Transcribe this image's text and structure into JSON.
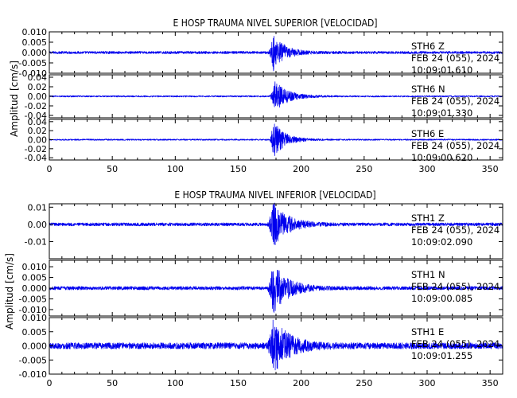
{
  "colors": {
    "trace": "#0000ee",
    "axis": "#000000",
    "background": "#ffffff"
  },
  "chart_data": [
    {
      "type": "line",
      "title": "E HOSP TRAUMA NIVEL SUPERIOR [VELOCIDAD]",
      "ylabel": "Amplitud [cm/s]",
      "xlim": [
        0,
        360
      ],
      "xticks": [
        0,
        50,
        100,
        150,
        200,
        250,
        300,
        350
      ],
      "xtick_labels": [
        "0",
        "50",
        "100",
        "150",
        "200",
        "250",
        "300",
        "350"
      ],
      "grid": false,
      "series": [
        {
          "name": "STH6 Z",
          "station": "STH6",
          "component": "Z",
          "date": "FEB 24 (055), 2024",
          "time": "10:09:01.610",
          "ylim": [
            -0.01,
            0.01
          ],
          "yticks": [
            0.01,
            0.005,
            0.0,
            -0.005,
            -0.01
          ],
          "ytick_labels": [
            "0.010",
            "0.005",
            "0.000",
            "-0.005",
            "-0.010"
          ],
          "noise_amplitude": 0.0006,
          "peak_amplitude": 0.0085,
          "onset_s": 173,
          "peak_s": 178,
          "decay_s": 9
        },
        {
          "name": "STH6 N",
          "station": "STH6",
          "component": "N",
          "date": "FEB 24 (055), 2024",
          "time": "10:09:01.330",
          "ylim": [
            -0.045,
            0.045
          ],
          "yticks": [
            0.04,
            0.02,
            0.0,
            -0.02,
            -0.04
          ],
          "ytick_labels": [
            "0.04",
            "0.02",
            "0.00",
            "-0.02",
            "-0.04"
          ],
          "noise_amplitude": 0.0015,
          "peak_amplitude": 0.032,
          "onset_s": 174,
          "peak_s": 179,
          "decay_s": 10
        },
        {
          "name": "STH6 E",
          "station": "STH6",
          "component": "E",
          "date": "FEB 24 (055), 2024",
          "time": "10:09:00.620",
          "ylim": [
            -0.045,
            0.045
          ],
          "yticks": [
            0.04,
            0.02,
            0.0,
            -0.02,
            -0.04
          ],
          "ytick_labels": [
            "0.04",
            "0.02",
            "0.00",
            "-0.02",
            "-0.04"
          ],
          "noise_amplitude": 0.0015,
          "peak_amplitude": 0.04,
          "onset_s": 174,
          "peak_s": 178,
          "decay_s": 9
        }
      ]
    },
    {
      "type": "line",
      "title": "E HOSP TRAUMA NIVEL INFERIOR [VELOCIDAD]",
      "ylabel": "Amplitud [cm/s]",
      "xlim": [
        0,
        360
      ],
      "xticks": [
        0,
        50,
        100,
        150,
        200,
        250,
        300,
        350
      ],
      "xtick_labels": [
        "0",
        "50",
        "100",
        "150",
        "200",
        "250",
        "300",
        "350"
      ],
      "grid": false,
      "series": [
        {
          "name": "STH1 Z",
          "station": "STH1",
          "component": "Z",
          "date": "FEB 24 (055), 2024",
          "time": "10:09:02.090",
          "ylim": [
            -0.02,
            0.012
          ],
          "yticks": [
            0.01,
            0.0,
            -0.01
          ],
          "ytick_labels": [
            "0.01",
            "0.00",
            "-0.01"
          ],
          "noise_amplitude": 0.0009,
          "peak_amplitude": 0.013,
          "onset_s": 172,
          "peak_s": 178,
          "decay_s": 11
        },
        {
          "name": "STH1 N",
          "station": "STH1",
          "component": "N",
          "date": "FEB 24 (055), 2024",
          "time": "10:09:00.085",
          "ylim": [
            -0.013,
            0.013
          ],
          "yticks": [
            0.01,
            0.005,
            0.0,
            -0.005,
            -0.01
          ],
          "ytick_labels": [
            "0.010",
            "0.005",
            "0.000",
            "-0.005",
            "-0.010"
          ],
          "noise_amplitude": 0.0008,
          "peak_amplitude": 0.012,
          "onset_s": 172,
          "peak_s": 178,
          "decay_s": 11
        },
        {
          "name": "STH1 E",
          "station": "STH1",
          "component": "E",
          "date": "FEB 24 (055), 2024",
          "time": "10:09:01.255",
          "ylim": [
            -0.01,
            0.01
          ],
          "yticks": [
            0.01,
            0.005,
            0.0,
            -0.005,
            -0.01
          ],
          "ytick_labels": [
            "0.010",
            "0.005",
            "0.000",
            "-0.005",
            "-0.010"
          ],
          "noise_amplitude": 0.0011,
          "peak_amplitude": 0.0095,
          "onset_s": 172,
          "peak_s": 178,
          "decay_s": 12
        }
      ]
    }
  ]
}
